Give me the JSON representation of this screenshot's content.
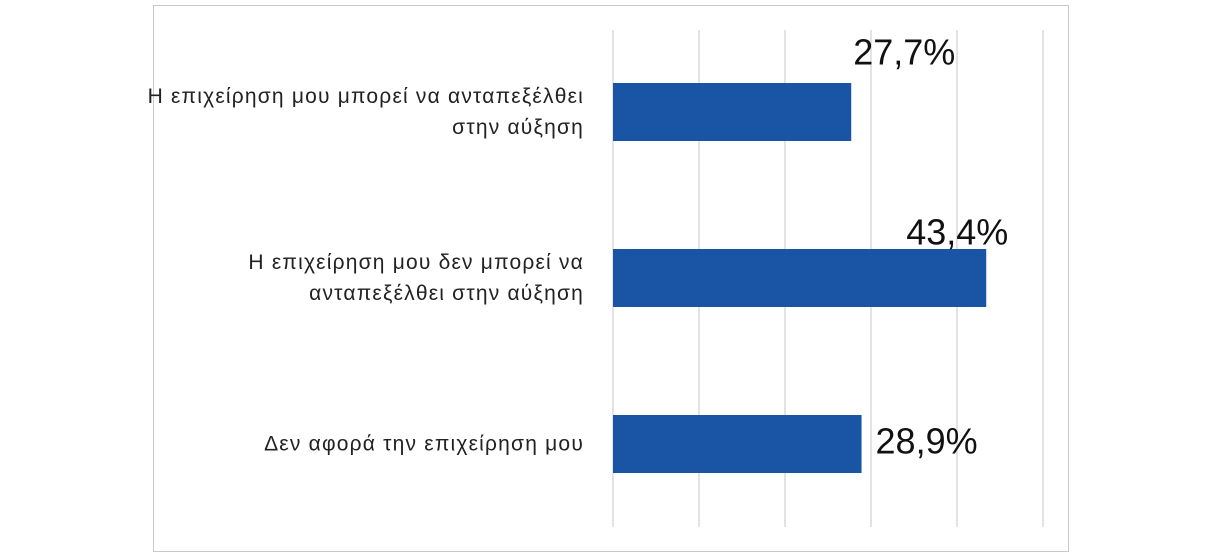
{
  "chart_data": {
    "type": "bar",
    "orientation": "horizontal",
    "categories": [
      "Η επιχείρηση μου μπορεί να ανταπεξέλθει στην αύξηση",
      "Η επιχείρηση μου δεν μπορεί να ανταπεξέλθει στην αύξηση",
      "Δεν αφορά την επιχείρηση μου"
    ],
    "values": [
      27.7,
      43.4,
      28.9
    ],
    "value_labels": [
      "27,7%",
      "43,4%",
      "28,9%"
    ],
    "color": "#1a55a5",
    "xlim": [
      0,
      50
    ],
    "xticks": [
      0,
      10,
      20,
      30,
      40,
      50
    ],
    "grid": true
  }
}
